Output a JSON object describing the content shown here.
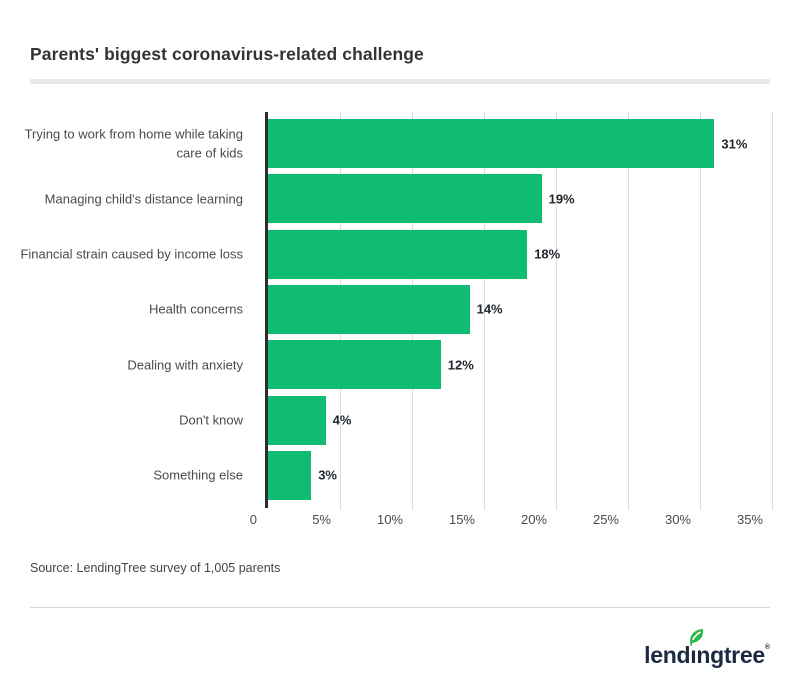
{
  "header": {
    "title": "Parents' biggest coronavirus-related challenge"
  },
  "chart_data": {
    "type": "bar",
    "orientation": "horizontal",
    "title": "Parents' biggest coronavirus-related challenge",
    "categories": [
      "Trying to work from home while taking care of kids",
      "Managing child's distance learning",
      "Financial strain caused by income loss",
      "Health concerns",
      "Dealing with anxiety",
      "Don't know",
      "Something else"
    ],
    "values": [
      31,
      19,
      18,
      14,
      12,
      4,
      3
    ],
    "value_labels": [
      "31%",
      "19%",
      "18%",
      "14%",
      "12%",
      "4%",
      "3%"
    ],
    "x_ticks": [
      0,
      5,
      10,
      15,
      20,
      25,
      30,
      35
    ],
    "x_tick_labels": [
      "0",
      "5%",
      "10%",
      "15%",
      "20%",
      "25%",
      "30%",
      "35%"
    ],
    "xlim": [
      0,
      35
    ],
    "xlabel": "",
    "ylabel": "",
    "grid": true,
    "legend": false,
    "bar_color": "#10bc72",
    "axis_color": "#2e2e2e",
    "gridline_color": "#dcdcdc"
  },
  "footer": {
    "source": "Source: LendingTree survey of 1,005 parents"
  },
  "logo": {
    "text": "lendingtree",
    "registered_mark": "®",
    "icon": "leaf-icon",
    "text_color": "#1b2a40",
    "leaf_color": "#2eb94f"
  }
}
